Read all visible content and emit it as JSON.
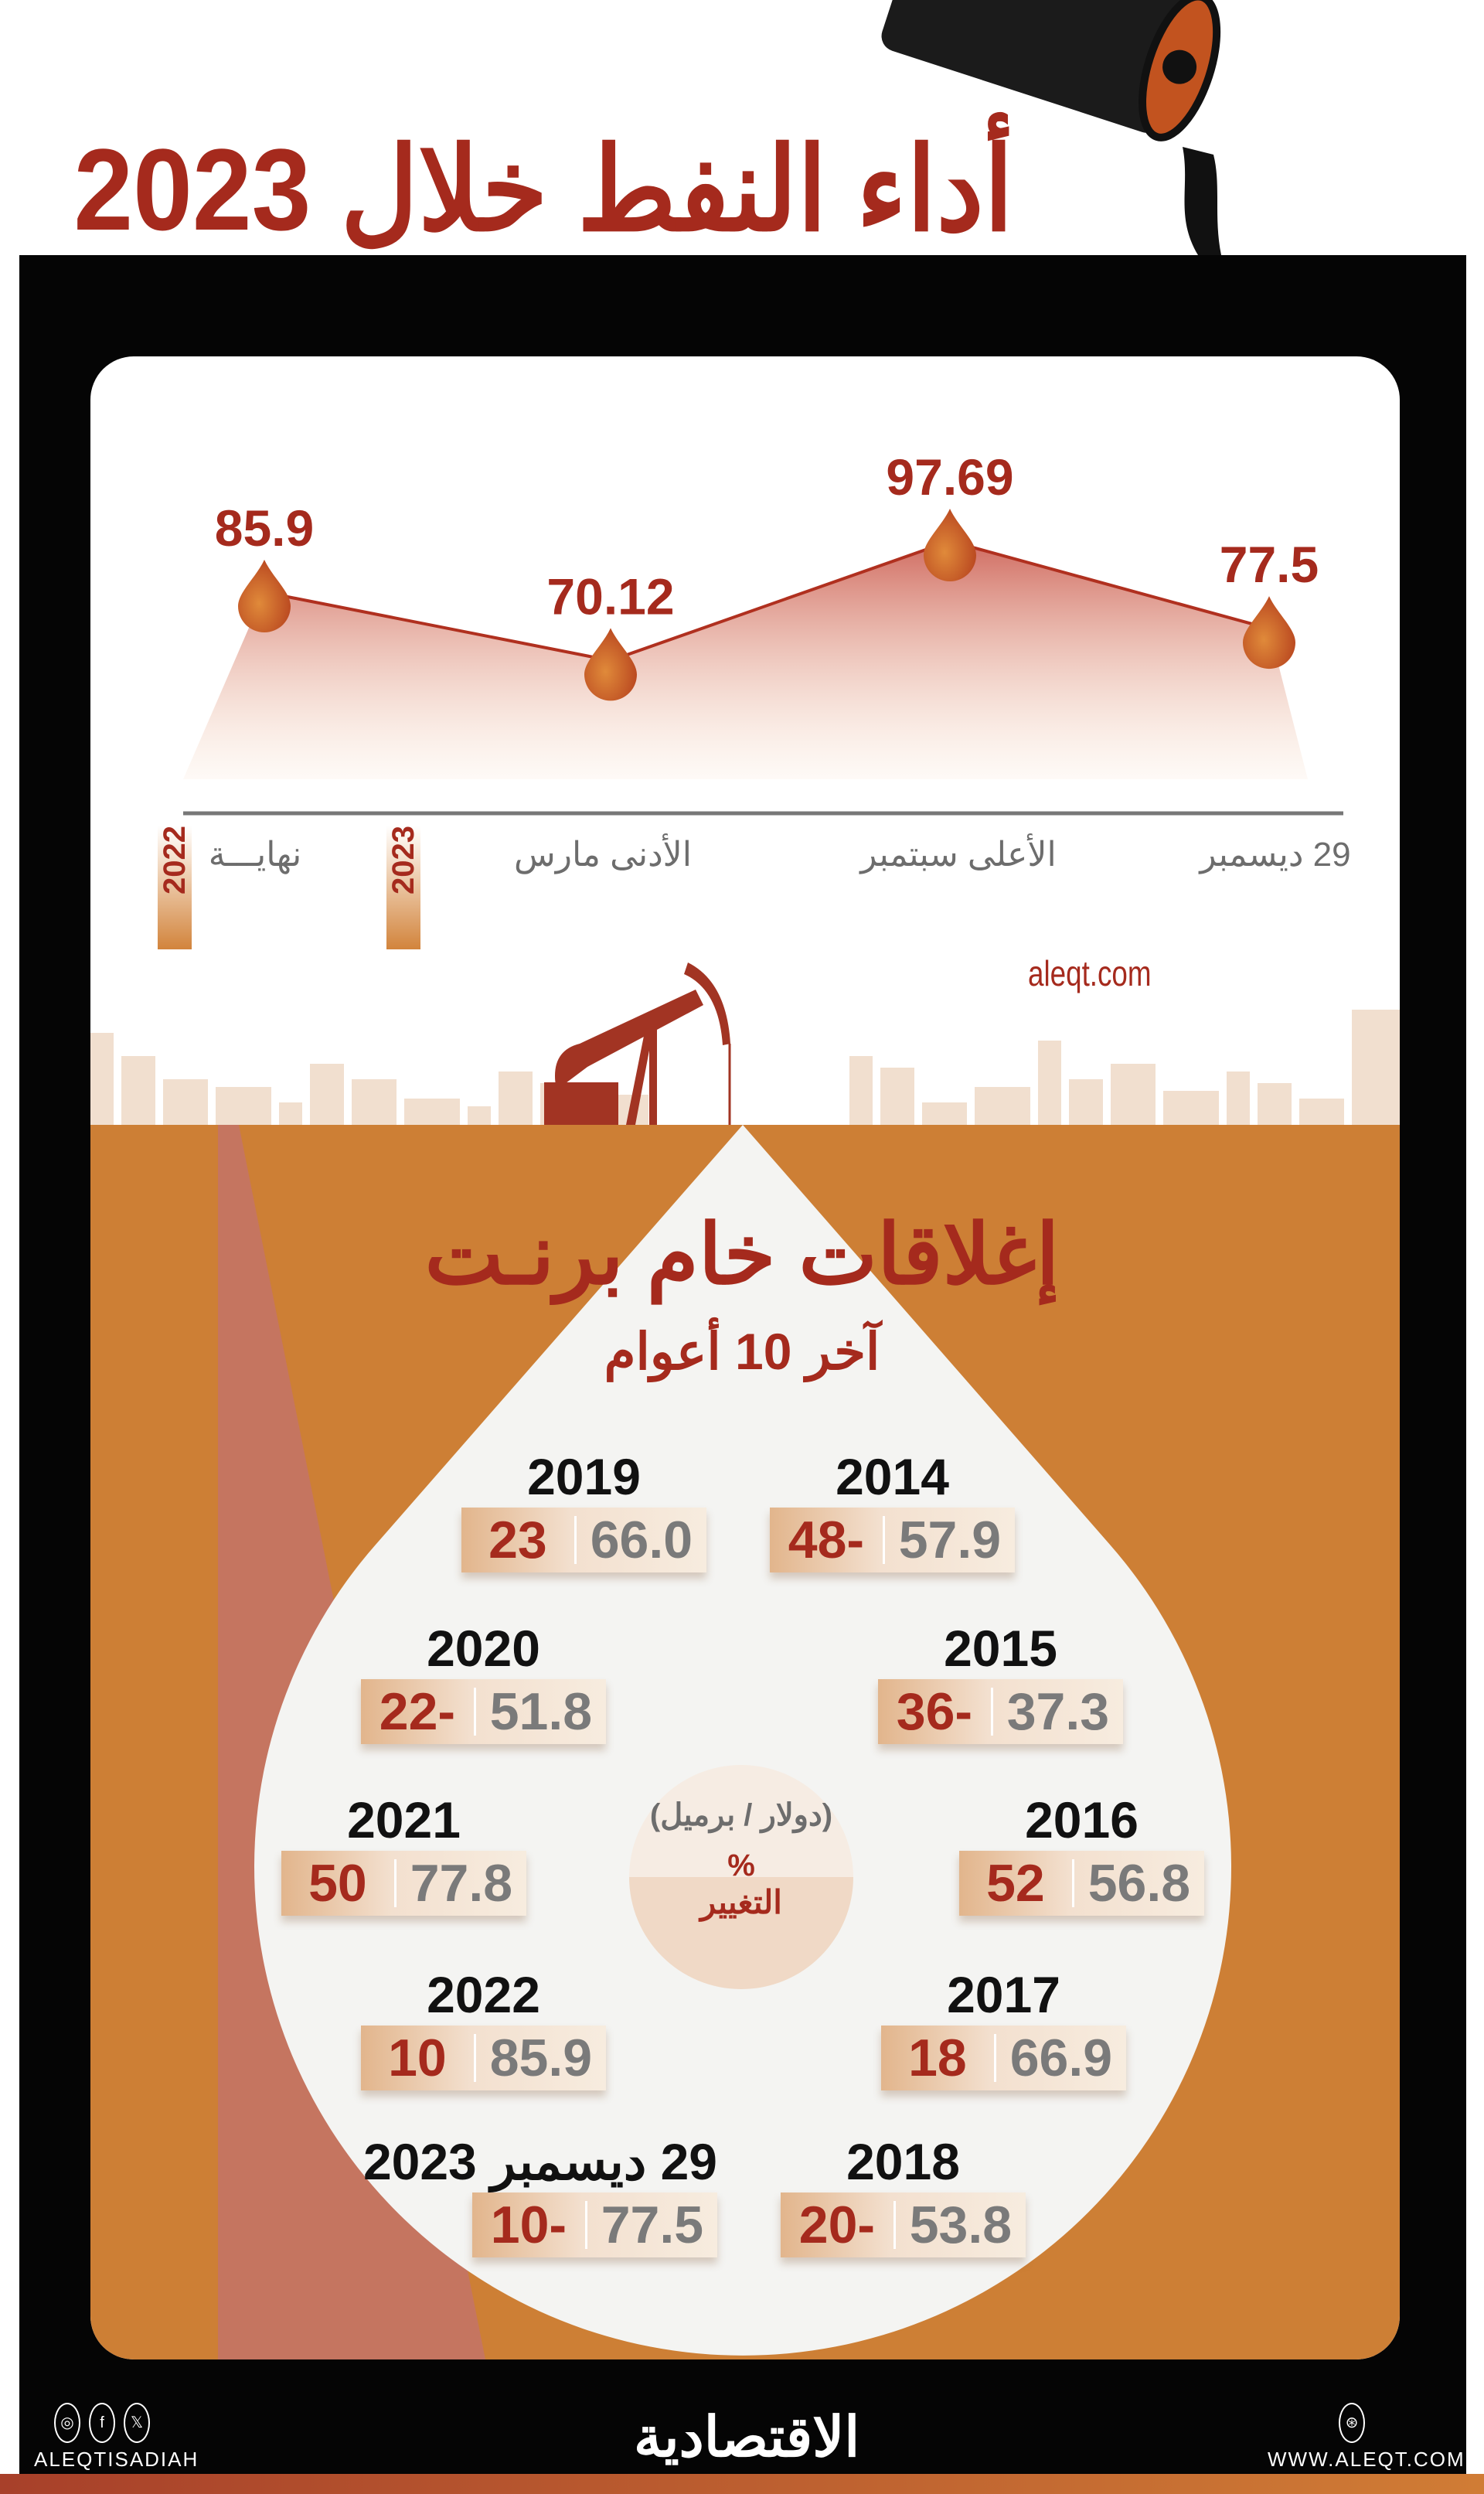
{
  "header": {
    "title": "أداء النفط خلال 2023"
  },
  "chart_data": {
    "type": "area",
    "categories": [
      "نهاية 2022",
      "الأدنى مارس 2023",
      "الأعلى سبتمبر 2023",
      "29 ديسمبر 2023"
    ],
    "values": [
      85.9,
      70.12,
      97.69,
      77.5
    ],
    "value_labels": [
      "85.9",
      "70.12",
      "97.69",
      "77.5"
    ],
    "x_labels": [
      "نهايـــة",
      "الأدنى مارس",
      "الأعلى سبتمبر",
      "29 ديسمبر"
    ],
    "year_tags": [
      "2022",
      "2023"
    ],
    "colors": {
      "line": "#b0301f",
      "fill": "#c0392b",
      "marker": "#c2531f"
    }
  },
  "site": "aleqt.com",
  "brent": {
    "title": "إغلاقات خام برنـت",
    "subtitle": "آخر 10 أعوام",
    "legend": {
      "unit": "(دولار / برميل)",
      "percent": "%",
      "change": "التغيير"
    },
    "years": [
      {
        "year": "2014",
        "change": "48-",
        "price": "57.9"
      },
      {
        "year": "2015",
        "change": "36-",
        "price": "37.3"
      },
      {
        "year": "2016",
        "change": "52",
        "price": "56.8"
      },
      {
        "year": "2017",
        "change": "18",
        "price": "66.9"
      },
      {
        "year": "2018",
        "change": "20-",
        "price": "53.8"
      },
      {
        "year": "2019",
        "change": "23",
        "price": "66.0"
      },
      {
        "year": "2020",
        "change": "22-",
        "price": "51.8"
      },
      {
        "year": "2021",
        "change": "50",
        "price": "77.8"
      },
      {
        "year": "2022",
        "change": "10",
        "price": "85.9"
      },
      {
        "year": "29 ديسمبر 2023",
        "change": "10-",
        "price": "77.5"
      }
    ]
  },
  "footer": {
    "handle": "ALEQTISADIAH",
    "logo": "الاقتصادية",
    "url": "WWW.ALEQT.COM",
    "icons": [
      "instagram-icon",
      "facebook-icon",
      "x-icon",
      "web-icon"
    ]
  }
}
